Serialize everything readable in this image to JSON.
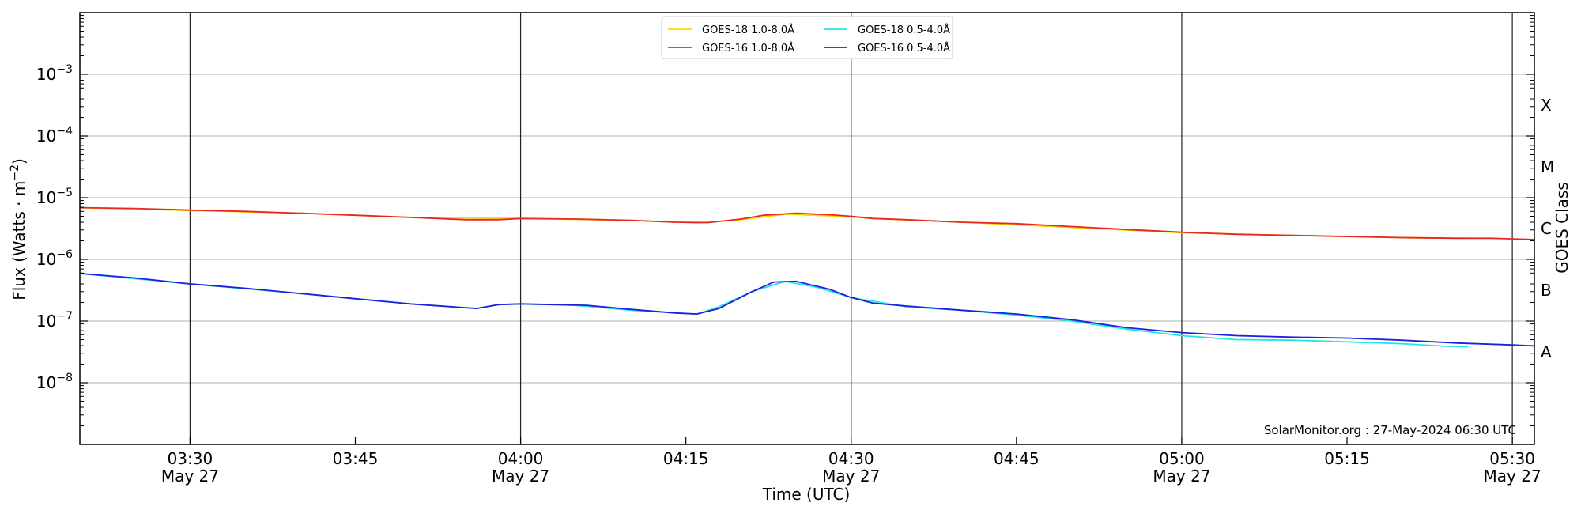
{
  "chart_data": {
    "type": "line",
    "xlabel": "Time (UTC)",
    "ylabel": "Flux (Watts · m",
    "ylabel_superscript": "−2",
    "ylabel_close": ")",
    "y2label": "GOES Class",
    "yscale": "log",
    "ylim": [
      1e-09,
      0.01
    ],
    "xlim": [
      "03:20",
      "05:32"
    ],
    "grid": "horizontal",
    "legend_position": "top-center",
    "credit": "SolarMonitor.org : 27-May-2024 06:30 UTC",
    "y_ticks": [
      {
        "value": 1e-08,
        "base": "10",
        "exp": "−8"
      },
      {
        "value": 1e-07,
        "base": "10",
        "exp": "−7"
      },
      {
        "value": 1e-06,
        "base": "10",
        "exp": "−6"
      },
      {
        "value": 1e-05,
        "base": "10",
        "exp": "−5"
      },
      {
        "value": 0.0001,
        "base": "10",
        "exp": "−4"
      },
      {
        "value": 0.001,
        "base": "10",
        "exp": "−3"
      }
    ],
    "x_ticks": [
      {
        "time": "03:30",
        "label": "03:30",
        "date": "May 27",
        "vline": true
      },
      {
        "time": "03:45",
        "label": "03:45",
        "date": "",
        "vline": false
      },
      {
        "time": "04:00",
        "label": "04:00",
        "date": "May 27",
        "vline": true
      },
      {
        "time": "04:15",
        "label": "04:15",
        "date": "",
        "vline": false
      },
      {
        "time": "04:30",
        "label": "04:30",
        "date": "May 27",
        "vline": true
      },
      {
        "time": "04:45",
        "label": "04:45",
        "date": "",
        "vline": false
      },
      {
        "time": "05:00",
        "label": "05:00",
        "date": "May 27",
        "vline": true
      },
      {
        "time": "05:15",
        "label": "05:15",
        "date": "",
        "vline": false
      },
      {
        "time": "05:30",
        "label": "05:30",
        "date": "May 27",
        "vline": true
      }
    ],
    "goes_classes": [
      {
        "label": "A",
        "value": 1e-08
      },
      {
        "label": "B",
        "value": 1e-07
      },
      {
        "label": "C",
        "value": 1e-06
      },
      {
        "label": "M",
        "value": 1e-05
      },
      {
        "label": "X",
        "value": 0.0001
      }
    ],
    "series": [
      {
        "name": "GOES-18 1.0-8.0Å",
        "color": "#ffd700",
        "x": [
          "03:20",
          "03:30",
          "03:40",
          "03:50",
          "04:00",
          "04:10",
          "04:16",
          "04:20",
          "04:24",
          "04:28",
          "04:32",
          "04:40",
          "04:50",
          "05:00",
          "05:10",
          "05:20",
          "05:26"
        ],
        "y": [
          6.9e-06,
          6.2e-06,
          5.6e-06,
          4.8e-06,
          4.6e-06,
          4.3e-06,
          3.9e-06,
          4.4e-06,
          5.4e-06,
          5.1e-06,
          4.6e-06,
          4e-06,
          3.3e-06,
          2.7e-06,
          2.45e-06,
          2.25e-06,
          2.2e-06
        ]
      },
      {
        "name": "GOES-16 1.0-8.0Å",
        "color": "#e8281e",
        "x": [
          "03:20",
          "03:25",
          "03:30",
          "03:35",
          "03:40",
          "03:45",
          "03:50",
          "03:55",
          "03:58",
          "04:00",
          "04:05",
          "04:10",
          "04:14",
          "04:17",
          "04:20",
          "04:22",
          "04:25",
          "04:28",
          "04:30",
          "04:32",
          "04:35",
          "04:40",
          "04:45",
          "04:50",
          "04:55",
          "05:00",
          "05:05",
          "05:10",
          "05:15",
          "05:20",
          "05:25",
          "05:28",
          "05:32"
        ],
        "y": [
          6.9e-06,
          6.7e-06,
          6.3e-06,
          6e-06,
          5.6e-06,
          5.2e-06,
          4.8e-06,
          4.4e-06,
          4.4e-06,
          4.6e-06,
          4.5e-06,
          4.3e-06,
          4e-06,
          3.95e-06,
          4.5e-06,
          5.2e-06,
          5.6e-06,
          5.3e-06,
          5e-06,
          4.6e-06,
          4.4e-06,
          4e-06,
          3.8e-06,
          3.4e-06,
          3.05e-06,
          2.75e-06,
          2.55e-06,
          2.45e-06,
          2.35e-06,
          2.25e-06,
          2.2e-06,
          2.2e-06,
          2.1e-06
        ]
      },
      {
        "name": "GOES-18 0.5-4.0Å",
        "color": "#22e6e6",
        "x": [
          "03:20",
          "03:30",
          "03:40",
          "03:50",
          "03:56",
          "03:58",
          "04:00",
          "04:05",
          "04:10",
          "04:16",
          "04:18",
          "04:21",
          "04:24",
          "04:27",
          "04:30",
          "04:35",
          "04:40",
          "04:45",
          "04:50",
          "04:55",
          "05:00",
          "05:05",
          "05:10",
          "05:15",
          "05:20",
          "05:24",
          "05:26"
        ],
        "y": [
          5.9e-07,
          4e-07,
          2.8e-07,
          1.9e-07,
          1.6e-07,
          1.85e-07,
          1.9e-07,
          1.8e-07,
          1.5e-07,
          1.3e-07,
          1.7e-07,
          3e-07,
          4.4e-07,
          3.5e-07,
          2.4e-07,
          1.7e-07,
          1.5e-07,
          1.25e-07,
          1e-07,
          7.4e-08,
          5.8e-08,
          5e-08,
          4.9e-08,
          4.6e-08,
          4.3e-08,
          3.9e-08,
          3.85e-08
        ]
      },
      {
        "name": "GOES-16 0.5-4.0Å",
        "color": "#1f1fe0",
        "x": [
          "03:20",
          "03:25",
          "03:30",
          "03:35",
          "03:40",
          "03:45",
          "03:50",
          "03:56",
          "03:58",
          "04:00",
          "04:03",
          "04:06",
          "04:10",
          "04:14",
          "04:16",
          "04:18",
          "04:21",
          "04:23",
          "04:25",
          "04:28",
          "04:30",
          "04:32",
          "04:35",
          "04:40",
          "04:45",
          "04:50",
          "04:55",
          "05:00",
          "05:05",
          "05:10",
          "05:15",
          "05:20",
          "05:25",
          "05:30",
          "05:32"
        ],
        "y": [
          5.9e-07,
          5e-07,
          4e-07,
          3.4e-07,
          2.8e-07,
          2.3e-07,
          1.9e-07,
          1.6e-07,
          1.85e-07,
          1.9e-07,
          1.85e-07,
          1.8e-07,
          1.55e-07,
          1.35e-07,
          1.3e-07,
          1.6e-07,
          3e-07,
          4.3e-07,
          4.4e-07,
          3.3e-07,
          2.4e-07,
          1.95e-07,
          1.75e-07,
          1.5e-07,
          1.3e-07,
          1.05e-07,
          7.8e-08,
          6.5e-08,
          5.8e-08,
          5.5e-08,
          5.3e-08,
          4.9e-08,
          4.4e-08,
          4.1e-08,
          3.95e-08
        ]
      }
    ]
  }
}
